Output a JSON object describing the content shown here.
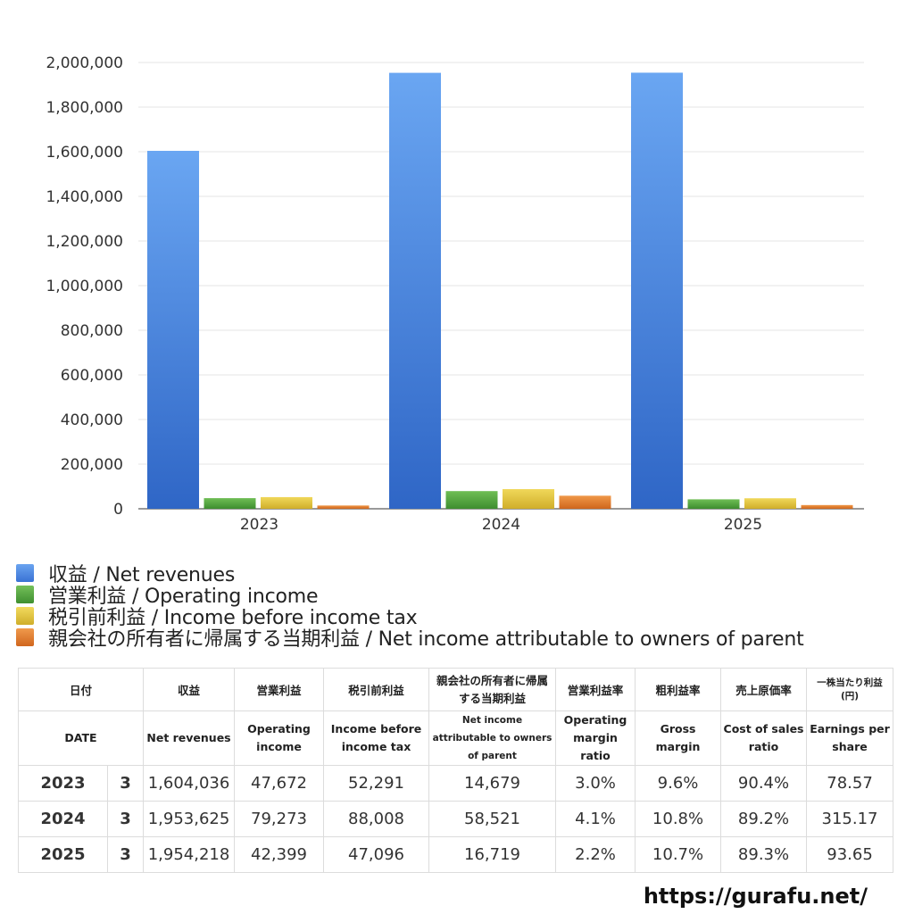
{
  "chart_data": {
    "type": "bar",
    "categories": [
      "2023",
      "2024",
      "2025"
    ],
    "series": [
      {
        "name": "収益 / Net revenues",
        "values": [
          1604036,
          1953625,
          1954218
        ],
        "color": "#4a85e0"
      },
      {
        "name": "営業利益 / Operating income",
        "values": [
          47672,
          79273,
          42399
        ],
        "color": "#52a43e"
      },
      {
        "name": "税引前利益 / Income before income tax",
        "values": [
          52291,
          88008,
          47096
        ],
        "color": "#e2c43a"
      },
      {
        "name": "親会社の所有者に帰属する当期利益 / Net income attributable to owners of parent",
        "values": [
          14679,
          58521,
          16719
        ],
        "color": "#e07c2c"
      }
    ],
    "ylim": [
      0,
      2000000
    ],
    "yticks": [
      "0",
      "200,000",
      "400,000",
      "600,000",
      "800,000",
      "1,000,000",
      "1,200,000",
      "1,400,000",
      "1,600,000",
      "1,800,000",
      "2,000,000"
    ],
    "grid": true,
    "legend_position": "bottom"
  },
  "table": {
    "headers_ja": [
      "日付",
      "収益",
      "営業利益",
      "税引前利益",
      "親会社の所有者に帰属する当期利益",
      "営業利益率",
      "粗利益率",
      "売上原価率",
      "一株当たり利益 (円)"
    ],
    "headers_en": [
      "DATE",
      "Net revenues",
      "Operating income",
      "Income before income tax",
      "Net income attributable to owners of parent",
      "Operating margin ratio",
      "Gross margin",
      "Cost of sales ratio",
      "Earnings per share"
    ],
    "rows": [
      {
        "year": "2023",
        "month": "3",
        "revenue": "1,604,036",
        "op_income": "47,672",
        "pretax": "52,291",
        "net_income": "14,679",
        "op_margin": "3.0%",
        "gross_margin": "9.6%",
        "cost_ratio": "90.4%",
        "eps": "78.57"
      },
      {
        "year": "2024",
        "month": "3",
        "revenue": "1,953,625",
        "op_income": "79,273",
        "pretax": "88,008",
        "net_income": "58,521",
        "op_margin": "4.1%",
        "gross_margin": "10.8%",
        "cost_ratio": "89.2%",
        "eps": "315.17"
      },
      {
        "year": "2025",
        "month": "3",
        "revenue": "1,954,218",
        "op_income": "42,399",
        "pretax": "47,096",
        "net_income": "16,719",
        "op_margin": "2.2%",
        "gross_margin": "10.7%",
        "cost_ratio": "89.3%",
        "eps": "93.65"
      }
    ]
  },
  "footer": {
    "url": "https://gurafu.net/"
  }
}
